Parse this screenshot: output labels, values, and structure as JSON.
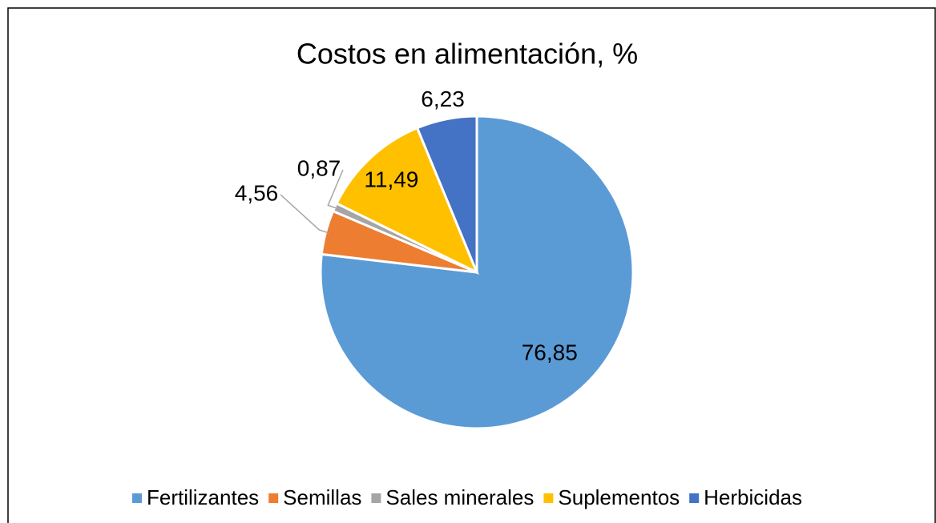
{
  "chart_data": {
    "type": "pie",
    "title": "Costos en alimentación, %",
    "categories": [
      "Fertilizantes",
      "Semillas",
      "Sales minerales",
      "Suplementos",
      "Herbicidas"
    ],
    "values": [
      76.85,
      4.56,
      0.87,
      11.49,
      6.23
    ],
    "value_labels": [
      "76,85",
      "4,56",
      "0,87",
      "11,49",
      "6,23"
    ],
    "colors": [
      "#5b9bd5",
      "#ed7d31",
      "#a5a5a5",
      "#ffc000",
      "#4472c4"
    ],
    "legend": "bottom"
  }
}
